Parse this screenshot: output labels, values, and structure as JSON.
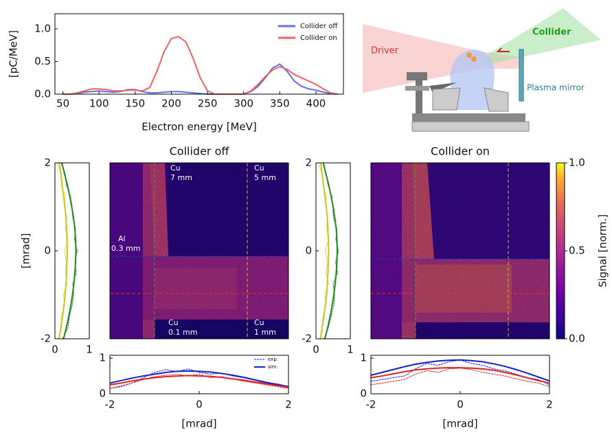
{
  "chart_data": [
    {
      "type": "line",
      "xlabel": "Electron energy [MeV]",
      "ylabel": "[pC/MeV]",
      "x": [
        50,
        60,
        70,
        80,
        90,
        100,
        110,
        120,
        130,
        140,
        150,
        160,
        170,
        180,
        190,
        200,
        210,
        220,
        230,
        240,
        250,
        260,
        270,
        280,
        290,
        300,
        310,
        320,
        330,
        340,
        350,
        360,
        370,
        380,
        390,
        400,
        410,
        420,
        430
      ],
      "series": [
        {
          "name": "Collider off",
          "color": "#6070e8",
          "values": [
            0,
            0,
            0.01,
            0.03,
            0.04,
            0.05,
            0.04,
            0.03,
            0.04,
            0.07,
            0.07,
            0.04,
            0.02,
            0.02,
            0.03,
            0.04,
            0.04,
            0.03,
            0.02,
            0.01,
            0,
            0,
            0,
            0,
            0,
            0,
            0.04,
            0.12,
            0.25,
            0.4,
            0.46,
            0.35,
            0.2,
            0.12,
            0.08,
            0.06,
            0.03,
            0.01,
            0
          ]
        },
        {
          "name": "Collider on",
          "color": "#f06060",
          "values": [
            0,
            0,
            0.02,
            0.05,
            0.08,
            0.08,
            0.07,
            0.05,
            0.05,
            0.06,
            0.06,
            0.05,
            0.1,
            0.35,
            0.65,
            0.85,
            0.88,
            0.8,
            0.55,
            0.25,
            0.05,
            0,
            0,
            0,
            0,
            0,
            0.05,
            0.15,
            0.27,
            0.37,
            0.42,
            0.38,
            0.3,
            0.25,
            0.2,
            0.15,
            0.08,
            0.02,
            0
          ]
        }
      ],
      "xlim": [
        39,
        438
      ],
      "xticks": [
        50,
        100,
        150,
        200,
        250,
        300,
        350,
        400
      ],
      "ylim": [
        0,
        1.23
      ],
      "yticks": [
        {
          "value": 0,
          "label": "0.0"
        },
        {
          "value": 0.5,
          "label": "0.5"
        },
        {
          "value": 1,
          "label": "1.0"
        }
      ],
      "legend": "upper right"
    },
    {
      "type": "heatmap",
      "title": "Collider off",
      "annotations": [
        [
          "Cu",
          "7 mm"
        ],
        [
          "Cu",
          "5 mm"
        ],
        [
          "Al",
          "0.3 mm"
        ],
        [
          "Cu",
          "0.1 mm"
        ],
        [
          "Cu",
          "1 mm"
        ]
      ]
    },
    {
      "type": "vprofile",
      "ylabel": "[mrad]",
      "y": [
        -2,
        -1.75,
        -1.5,
        -1.25,
        -1,
        -0.75,
        -0.5,
        -0.25,
        0,
        0.25,
        0.5,
        0.75,
        1,
        1.25,
        1.5,
        1.75,
        2
      ],
      "series": [
        {
          "color": "#c8c820",
          "dashed": true,
          "values": [
            0.1,
            0.2,
            0.18,
            0.28,
            0.25,
            0.35,
            0.3,
            0.33,
            0.28,
            0.38,
            0.3,
            0.35,
            0.27,
            0.3,
            0.18,
            0.2,
            0.05
          ]
        },
        {
          "color": "#c8c820",
          "values": [
            0.12,
            0.17,
            0.22,
            0.26,
            0.3,
            0.32,
            0.34,
            0.35,
            0.36,
            0.35,
            0.34,
            0.32,
            0.29,
            0.25,
            0.21,
            0.17,
            0.13
          ]
        },
        {
          "color": "#228822",
          "dashed": true,
          "values": [
            0.22,
            0.38,
            0.42,
            0.5,
            0.55,
            0.52,
            0.62,
            0.58,
            0.65,
            0.57,
            0.6,
            0.52,
            0.5,
            0.45,
            0.33,
            0.3,
            0.18
          ]
        },
        {
          "color": "#228822",
          "values": [
            0.25,
            0.33,
            0.4,
            0.46,
            0.51,
            0.55,
            0.58,
            0.6,
            0.61,
            0.6,
            0.58,
            0.54,
            0.49,
            0.43,
            0.36,
            0.28,
            0.2
          ]
        }
      ],
      "xlim": [
        0,
        1
      ],
      "xticks": [
        0,
        1
      ],
      "ylim": [
        -2,
        2
      ],
      "yticks": [
        -2,
        0,
        2
      ]
    },
    {
      "type": "hprofile",
      "xlabel": "[mrad]",
      "x": [
        -2,
        -1.75,
        -1.5,
        -1.25,
        -1,
        -0.75,
        -0.5,
        -0.25,
        0,
        0.25,
        0.5,
        0.75,
        1,
        1.25,
        1.5,
        1.75,
        2
      ],
      "series": [
        {
          "name": "exp.",
          "color": "#1020d0",
          "dashed": true,
          "values": [
            0.15,
            0.2,
            0.3,
            0.45,
            0.6,
            0.68,
            0.62,
            0.7,
            0.6,
            0.55,
            0.58,
            0.5,
            0.45,
            0.38,
            0.3,
            0.28,
            0.2
          ]
        },
        {
          "name": "sim.",
          "color": "#1020d0",
          "values": [
            0.3,
            0.37,
            0.44,
            0.5,
            0.55,
            0.6,
            0.63,
            0.64,
            0.63,
            0.61,
            0.57,
            0.52,
            0.46,
            0.39,
            0.32,
            0.26,
            0.2
          ]
        },
        {
          "color": "#e02020",
          "dashed": true,
          "values": [
            0.15,
            0.22,
            0.3,
            0.4,
            0.48,
            0.52,
            0.55,
            0.5,
            0.55,
            0.45,
            0.48,
            0.42,
            0.35,
            0.3,
            0.25,
            0.2,
            0.15
          ]
        },
        {
          "color": "#e02020",
          "values": [
            0.25,
            0.3,
            0.36,
            0.41,
            0.45,
            0.48,
            0.5,
            0.51,
            0.5,
            0.49,
            0.46,
            0.42,
            0.38,
            0.33,
            0.28,
            0.23,
            0.18
          ]
        }
      ],
      "xlim": [
        -2,
        2
      ],
      "xticks": [
        -2,
        0,
        2
      ],
      "ylim": [
        0,
        1.08
      ],
      "yticks": [
        0,
        1
      ]
    },
    {
      "type": "heatmap",
      "title": "Collider on"
    },
    {
      "type": "vprofile",
      "y": [
        -2,
        -1.75,
        -1.5,
        -1.25,
        -1,
        -0.75,
        -0.5,
        -0.25,
        0,
        0.25,
        0.5,
        0.75,
        1,
        1.25,
        1.5,
        1.75,
        2
      ],
      "series": [
        {
          "color": "#c8c820",
          "dashed": true,
          "values": [
            0.12,
            0.18,
            0.2,
            0.3,
            0.26,
            0.36,
            0.3,
            0.34,
            0.27,
            0.37,
            0.31,
            0.34,
            0.28,
            0.3,
            0.2,
            0.18,
            0.06
          ]
        },
        {
          "color": "#c8c820",
          "values": [
            0.13,
            0.18,
            0.23,
            0.27,
            0.31,
            0.33,
            0.35,
            0.36,
            0.37,
            0.36,
            0.35,
            0.33,
            0.3,
            0.26,
            0.22,
            0.18,
            0.14
          ]
        },
        {
          "color": "#228822",
          "dashed": true,
          "values": [
            0.24,
            0.36,
            0.44,
            0.52,
            0.54,
            0.5,
            0.63,
            0.57,
            0.66,
            0.58,
            0.61,
            0.51,
            0.49,
            0.46,
            0.35,
            0.3,
            0.2
          ]
        },
        {
          "color": "#228822",
          "values": [
            0.26,
            0.34,
            0.41,
            0.47,
            0.52,
            0.56,
            0.59,
            0.61,
            0.62,
            0.61,
            0.59,
            0.55,
            0.5,
            0.44,
            0.37,
            0.29,
            0.21
          ]
        }
      ],
      "xlim": [
        0,
        1
      ],
      "xticks": [
        0,
        1
      ],
      "ylim": [
        -2,
        2
      ],
      "yticks": [
        -2,
        0,
        2
      ]
    },
    {
      "type": "hprofile",
      "xlabel": "[mrad]",
      "x": [
        -2,
        -1.75,
        -1.5,
        -1.25,
        -1,
        -0.75,
        -0.5,
        -0.25,
        0,
        0.25,
        0.5,
        0.75,
        1,
        1.25,
        1.5,
        1.75,
        2
      ],
      "series": [
        {
          "color": "#1020d0",
          "dashed": true,
          "values": [
            0.35,
            0.4,
            0.45,
            0.5,
            0.7,
            0.85,
            0.8,
            0.9,
            0.95,
            0.85,
            0.8,
            0.7,
            0.65,
            0.55,
            0.45,
            0.4,
            0.25
          ]
        },
        {
          "color": "#1020d0",
          "values": [
            0.52,
            0.6,
            0.68,
            0.76,
            0.83,
            0.88,
            0.92,
            0.94,
            0.95,
            0.93,
            0.9,
            0.84,
            0.77,
            0.68,
            0.58,
            0.47,
            0.36
          ]
        },
        {
          "color": "#e02020",
          "dashed": true,
          "values": [
            0.25,
            0.3,
            0.35,
            0.4,
            0.55,
            0.65,
            0.6,
            0.7,
            0.72,
            0.68,
            0.6,
            0.55,
            0.5,
            0.42,
            0.35,
            0.3,
            0.2
          ]
        },
        {
          "color": "#e02020",
          "values": [
            0.45,
            0.5,
            0.56,
            0.62,
            0.67,
            0.7,
            0.72,
            0.73,
            0.73,
            0.72,
            0.7,
            0.66,
            0.6,
            0.53,
            0.45,
            0.37,
            0.3
          ]
        }
      ],
      "xlim": [
        -2,
        2
      ],
      "xticks": [
        -2,
        0,
        2
      ],
      "ylim": [
        0,
        1.08
      ],
      "yticks": [
        0,
        1
      ]
    },
    {
      "type": "colorbar",
      "ylabel": "Signal [norm.]",
      "ylim": [
        0,
        1
      ],
      "yticks": [
        {
          "value": 0,
          "label": "0.0"
        },
        {
          "value": 0.5,
          "label": "0.5"
        },
        {
          "value": 1,
          "label": "1.0"
        }
      ]
    }
  ],
  "diagram": {
    "labels": [
      "Driver",
      "Collider",
      "Plasma mirror"
    ]
  }
}
